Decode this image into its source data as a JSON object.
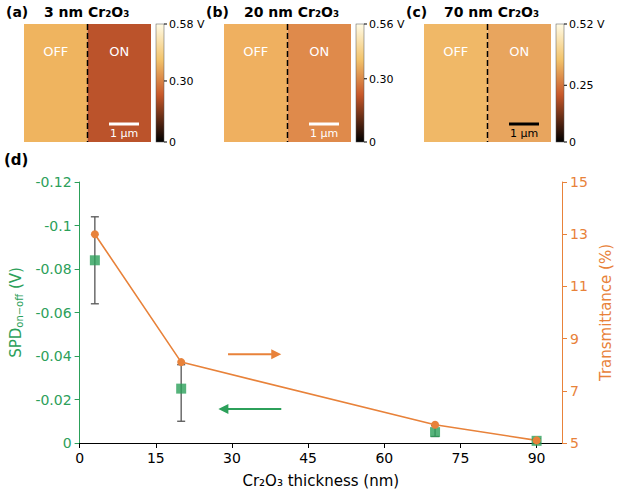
{
  "panels": [
    {
      "label": "(a)",
      "title": "3 nm Cr₂O₃",
      "regions": [
        "OFF",
        "ON"
      ],
      "scale_bar": "1 µm",
      "colorbar": {
        "range": [
          0,
          0.58
        ],
        "ticks": [
          0,
          {
            "value": 0.3,
            "label": "0.30"
          },
          {
            "value": 0.58,
            "label": "0.58 V"
          }
        ]
      }
    },
    {
      "label": "(b)",
      "title": "20 nm Cr₂O₃",
      "regions": [
        "OFF",
        "ON"
      ],
      "scale_bar": "1 µm",
      "colorbar": {
        "range": [
          0,
          0.56
        ],
        "ticks": [
          0,
          {
            "value": 0.3,
            "label": "0.30"
          },
          {
            "value": 0.56,
            "label": "0.56 V"
          }
        ]
      }
    },
    {
      "label": "(c)",
      "title": "70 nm Cr₂O₃",
      "regions": [
        "OFF",
        "ON"
      ],
      "scale_bar": "1 µm",
      "colorbar": {
        "range": [
          0,
          0.52
        ],
        "ticks": [
          0,
          0.25,
          {
            "value": 0.52,
            "label": "0.52 V"
          }
        ]
      }
    }
  ],
  "chart_data": {
    "panel": "(d)",
    "type": "line",
    "xlabel": "Cr₂O₃ thickness (nm)",
    "ylabel": {
      "text": "SPD",
      "subscript": "on−off",
      "suffix": " (V)"
    },
    "y2label": "Transmittance (%)",
    "x": [
      3,
      20,
      70,
      90
    ],
    "xlim": [
      0,
      95
    ],
    "xticks": [
      0,
      15,
      30,
      45,
      60,
      75,
      90
    ],
    "ylim": [
      0,
      -0.12
    ],
    "yticks": [
      0,
      -0.02,
      -0.04,
      -0.06,
      -0.08,
      -0.1,
      -0.12
    ],
    "y2lim": [
      5,
      15
    ],
    "y2ticks": [
      5,
      7,
      9,
      11,
      13,
      15
    ],
    "grid": false,
    "series": [
      {
        "type": "scatter",
        "marker": "square",
        "color": "#2ca05a",
        "values": [
          -0.084,
          -0.025,
          -0.005,
          -0.001
        ],
        "errors": [
          [
            -0.064,
            -0.104
          ],
          [
            -0.01,
            -0.036
          ],
          [
            -0.003,
            -0.008
          ],
          [
            0,
            -0.002
          ]
        ]
      },
      {
        "type": "line",
        "marker": "circle",
        "color": "#e8823a",
        "axis": "y2",
        "values": [
          13.0,
          8.1,
          5.7,
          5.1
        ]
      }
    ]
  }
}
